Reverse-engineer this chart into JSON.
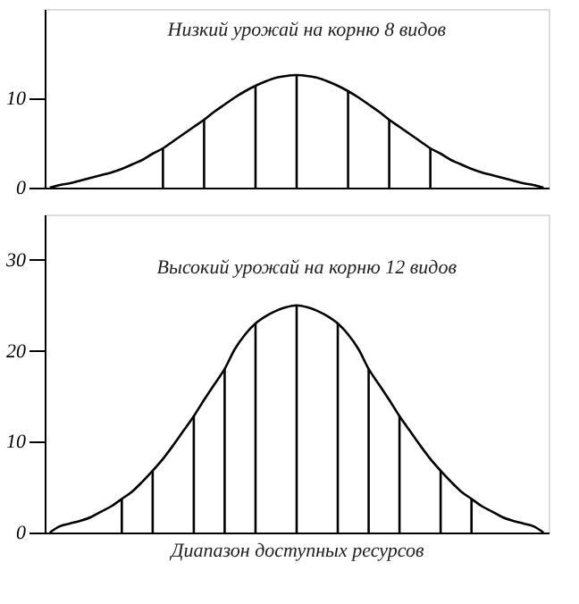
{
  "chart_data": [
    {
      "type": "line",
      "annotations": [
        "Низкий урожай на корню 8 видов"
      ],
      "categories": [
        null,
        null,
        null,
        null,
        null,
        null,
        null,
        null,
        null,
        null,
        null,
        null,
        null,
        null,
        null,
        null,
        null,
        null,
        null,
        null,
        null,
        null,
        null,
        null,
        null,
        null,
        null,
        null,
        null,
        null,
        null,
        null,
        null,
        null,
        null,
        null,
        null,
        null,
        null,
        null,
        null,
        null,
        null,
        null,
        null,
        null,
        null,
        null,
        null
      ],
      "relative": false,
      "ylim": [
        0,
        20
      ],
      "yticks": [
        0,
        10
      ],
      "tick_labels": "y",
      "grid": false,
      "series": [
        {
          "color": "#000000",
          "values": [
            0,
            0.3,
            0.5,
            0.8,
            1.1,
            1.4,
            1.7,
            2.1,
            2.6,
            3.1,
            3.8,
            4.4,
            5.2,
            6.0,
            6.8,
            7.6,
            8.5,
            9.3,
            10.1,
            10.8,
            11.4,
            11.9,
            12.3,
            12.5,
            12.6,
            12.5,
            12.3,
            11.9,
            11.4,
            10.8,
            10.1,
            9.3,
            8.5,
            7.6,
            6.8,
            6.0,
            5.2,
            4.4,
            3.8,
            3.1,
            2.6,
            2.1,
            1.7,
            1.4,
            1.1,
            0.8,
            0.5,
            0.3,
            0
          ]
        },
        {
          "type": "bar",
          "color": "#000000",
          "values": [
            null,
            null,
            null,
            null,
            null,
            null,
            null,
            null,
            null,
            null,
            null,
            4.4,
            null,
            null,
            null,
            7.6,
            null,
            null,
            null,
            null,
            11.4,
            null,
            null,
            null,
            12.6,
            null,
            null,
            null,
            null,
            10.8,
            null,
            null,
            null,
            7.6,
            null,
            null,
            null,
            4.4,
            null,
            null,
            null,
            null,
            null,
            null,
            null,
            null,
            null,
            null,
            null
          ]
        }
      ]
    },
    {
      "type": "line",
      "annotations": [
        "Высокий урожай на корню 12 видов"
      ],
      "xlabel": "Диапазон доступных ресурсов",
      "categories": [
        null,
        null,
        null,
        null,
        null,
        null,
        null,
        null,
        null,
        null,
        null,
        null,
        null,
        null,
        null,
        null,
        null,
        null,
        null,
        null,
        null,
        null,
        null,
        null,
        null,
        null,
        null,
        null,
        null,
        null,
        null,
        null,
        null,
        null,
        null,
        null,
        null,
        null,
        null,
        null,
        null,
        null,
        null,
        null,
        null,
        null,
        null,
        null,
        null
      ],
      "ylim": [
        0,
        35
      ],
      "yticks": [
        0,
        10,
        20,
        30
      ],
      "tick_labels": "y",
      "grid": false,
      "series": [
        {
          "color": "#000000",
          "values": [
            0,
            0.7,
            1.0,
            1.3,
            1.7,
            2.3,
            2.9,
            3.7,
            4.5,
            5.6,
            6.8,
            8.1,
            9.6,
            11.2,
            12.8,
            14.6,
            16.3,
            18.0,
            20.2,
            21.8,
            23.0,
            23.8,
            24.4,
            24.8,
            25,
            24.8,
            24.4,
            23.8,
            23.0,
            21.8,
            20.2,
            18.0,
            16.3,
            14.6,
            12.8,
            11.2,
            9.6,
            8.1,
            6.8,
            5.6,
            4.5,
            3.7,
            2.9,
            2.3,
            1.7,
            1.3,
            1.0,
            0.7,
            0
          ]
        },
        {
          "type": "bar",
          "color": "#000000",
          "values": [
            null,
            null,
            null,
            null,
            null,
            null,
            null,
            3.7,
            null,
            null,
            6.8,
            null,
            null,
            null,
            12.8,
            null,
            null,
            18.0,
            null,
            null,
            23.0,
            null,
            null,
            null,
            25,
            null,
            null,
            null,
            23.0,
            null,
            null,
            18.0,
            null,
            null,
            12.8,
            null,
            null,
            null,
            6.8,
            null,
            null,
            3.7,
            null,
            null,
            null,
            null,
            null,
            null,
            null
          ]
        }
      ]
    }
  ]
}
